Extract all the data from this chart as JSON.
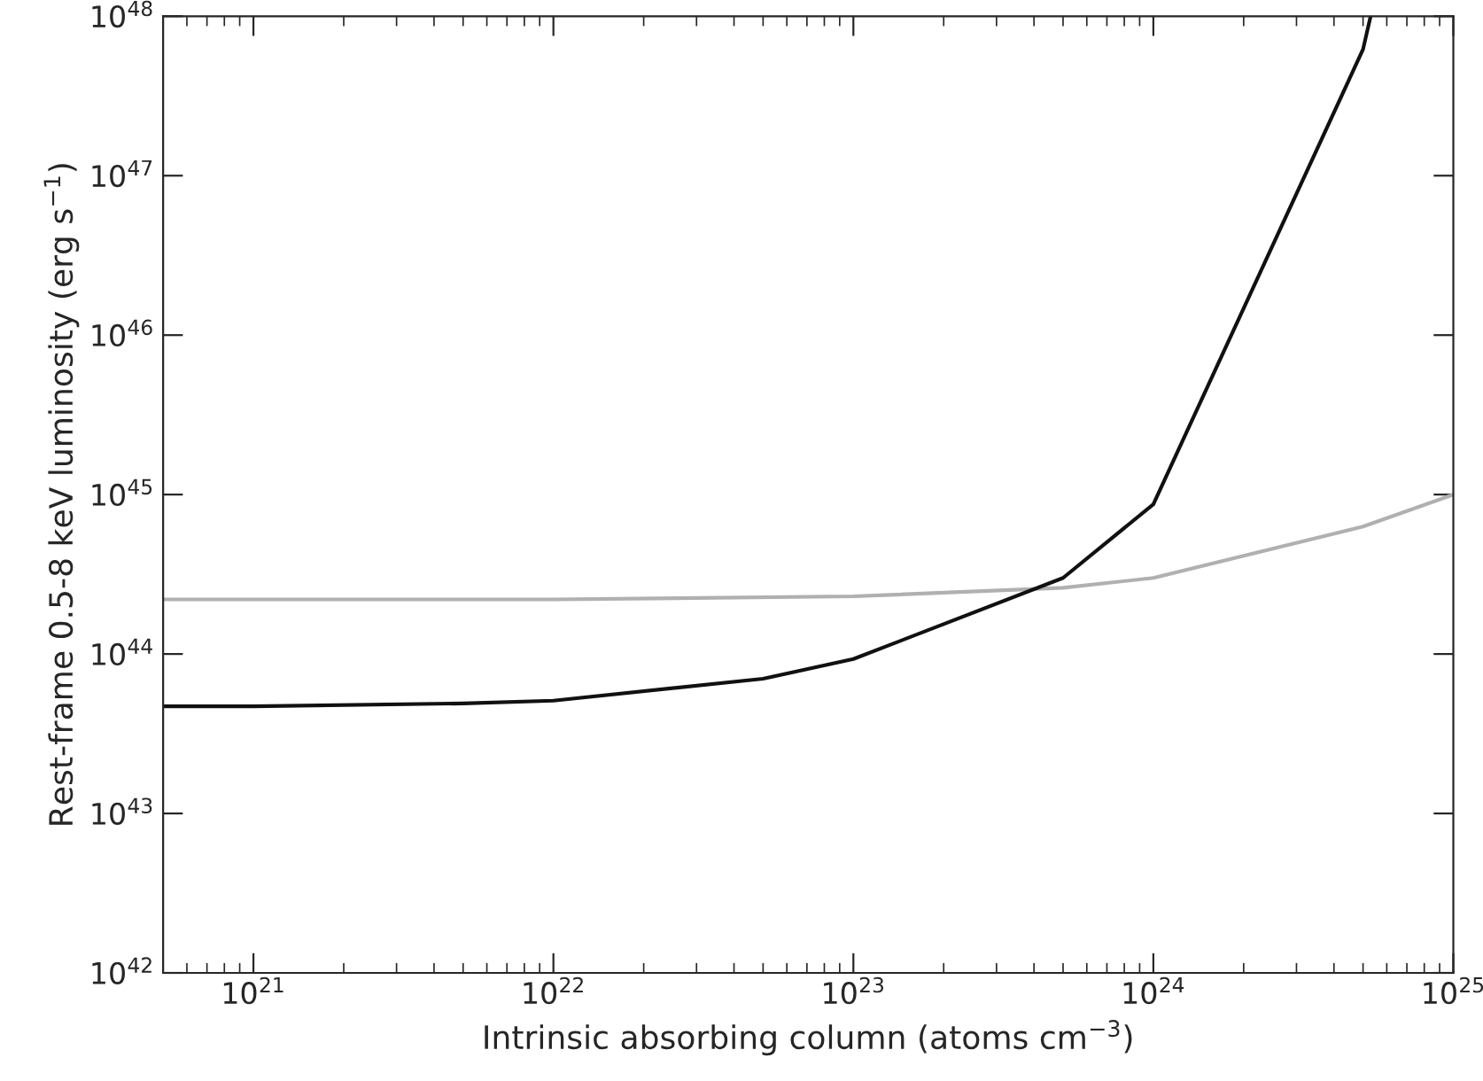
{
  "chart_data": {
    "type": "line",
    "xlabel": "Intrinsic absorbing column (atoms cm$^{−3}$)",
    "ylabel": "Rest-frame 0.5-8 keV luminosity (erg s$^{−1}$)",
    "log": "xy",
    "grid": false,
    "legend": false,
    "marker": "none",
    "line_style": "solid",
    "xlim": [
      5e+20,
      1e+25
    ],
    "ylim": [
      1e+42,
      1e+48
    ],
    "xticks": [
      {
        "value": 1e+21,
        "label": "10$^{21}$"
      },
      {
        "value": 1e+22,
        "label": "10$^{22}$"
      },
      {
        "value": 1e+23,
        "label": "10$^{23}$"
      },
      {
        "value": 1e+24,
        "label": "10$^{24}$"
      },
      {
        "value": 1e+25,
        "label": "10$^{25}$"
      }
    ],
    "yticks": [
      {
        "value": 1e+42,
        "label": "10$^{42}$"
      },
      {
        "value": 1e+43,
        "label": "10$^{43}$"
      },
      {
        "value": 1e+44,
        "label": "10$^{44}$"
      },
      {
        "value": 1e+45,
        "label": "10$^{45}$"
      },
      {
        "value": 1e+46,
        "label": "10$^{46}$"
      },
      {
        "value": 1e+47,
        "label": "10$^{47}$"
      },
      {
        "value": 1e+48,
        "label": "10$^{48}$"
      }
    ],
    "series": [
      {
        "color": "#b0b0b0",
        "x": [
          5e+20,
          1e+21,
          1e+22,
          1e+23,
          5e+23,
          1e+24,
          5e+24,
          1e+25
        ],
        "values": [
          2.2e+44,
          2.2e+44,
          2.2e+44,
          2.3e+44,
          2.6e+44,
          3e+44,
          6.3e+44,
          1e+45
        ]
      },
      {
        "color": "#111111",
        "x": [
          5e+20,
          1e+21,
          5e+21,
          1e+22,
          5e+22,
          1e+23,
          5e+23,
          1e+24,
          5e+24,
          5.3e+24
        ],
        "values": [
          4.7e+43,
          4.7e+43,
          4.9e+43,
          5.1e+43,
          7e+43,
          9.3e+43,
          3e+44,
          8.7e+44,
          6.2e+47,
          1e+48
        ]
      }
    ]
  }
}
